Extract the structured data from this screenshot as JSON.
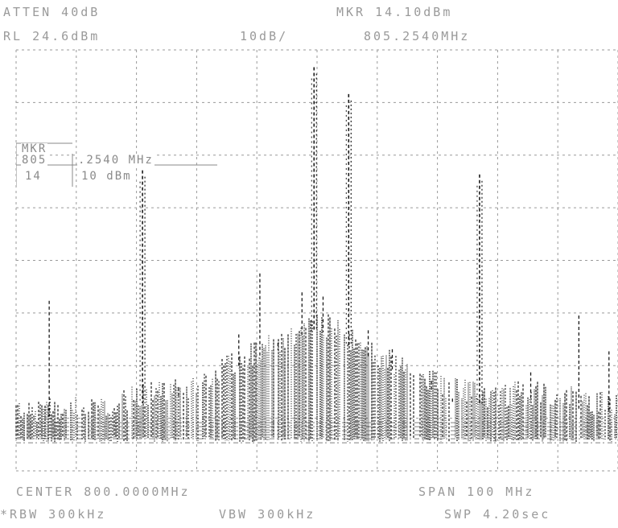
{
  "header": {
    "atten": "ATTEN 40dB",
    "ref_level": "RL 24.6dBm",
    "scale": "10dB/",
    "marker_level": "MKR 14.10dBm",
    "marker_freq": "805.2540MHz"
  },
  "marker_box": {
    "label_mkr": "MKR",
    "label_freq": "805",
    "freq_value": ".2540 MHz",
    "label_level": "14",
    "level_value": "10 dBm"
  },
  "footer": {
    "center": "CENTER 800.0000MHz",
    "span": "SPAN 100 MHz",
    "rbw": "*RBW 300kHz",
    "vbw": "VBW 300kHz",
    "sweep": "SWP 4.20sec"
  },
  "colors": {
    "background": "#ffffff",
    "trace": "#1a1a1a",
    "graticule": "#9a9a9a",
    "text": "#8a8a8a"
  },
  "chart_data": {
    "type": "line",
    "title": "",
    "xlabel": "",
    "ylabel": "",
    "xlim": [
      750,
      850
    ],
    "ylim": [
      -75.4,
      24.6
    ],
    "grid": true,
    "x_unit": "MHz",
    "y_unit": "dBm",
    "peaks": [
      {
        "x": 755.5,
        "y": -35.0
      },
      {
        "x": 771.0,
        "y": -4.0
      },
      {
        "x": 777.0,
        "y": -55.5
      },
      {
        "x": 787.0,
        "y": -43.0
      },
      {
        "x": 790.5,
        "y": -28.5
      },
      {
        "x": 793.5,
        "y": -45.0
      },
      {
        "x": 797.5,
        "y": -33.0
      },
      {
        "x": 799.5,
        "y": 20.5
      },
      {
        "x": 801.0,
        "y": -34.0
      },
      {
        "x": 805.254,
        "y": 14.1
      },
      {
        "x": 808.5,
        "y": -42.0
      },
      {
        "x": 812.5,
        "y": -46.5
      },
      {
        "x": 819.0,
        "y": -54.0
      },
      {
        "x": 822.5,
        "y": -59.0
      },
      {
        "x": 827.0,
        "y": -5.0
      },
      {
        "x": 835.5,
        "y": -52.0
      },
      {
        "x": 843.5,
        "y": -38.5
      },
      {
        "x": 848.5,
        "y": -47.0
      }
    ],
    "noise_floor": [
      {
        "x": 750,
        "y": -62
      },
      {
        "x": 765,
        "y": -62
      },
      {
        "x": 772,
        "y": -58
      },
      {
        "x": 780,
        "y": -57
      },
      {
        "x": 786,
        "y": -51
      },
      {
        "x": 792,
        "y": -47
      },
      {
        "x": 796,
        "y": -44
      },
      {
        "x": 800,
        "y": -41
      },
      {
        "x": 804,
        "y": -44
      },
      {
        "x": 810,
        "y": -49
      },
      {
        "x": 816,
        "y": -54
      },
      {
        "x": 822,
        "y": -57
      },
      {
        "x": 828,
        "y": -59
      },
      {
        "x": 836,
        "y": -58
      },
      {
        "x": 844,
        "y": -60
      },
      {
        "x": 850,
        "y": -61
      }
    ]
  }
}
